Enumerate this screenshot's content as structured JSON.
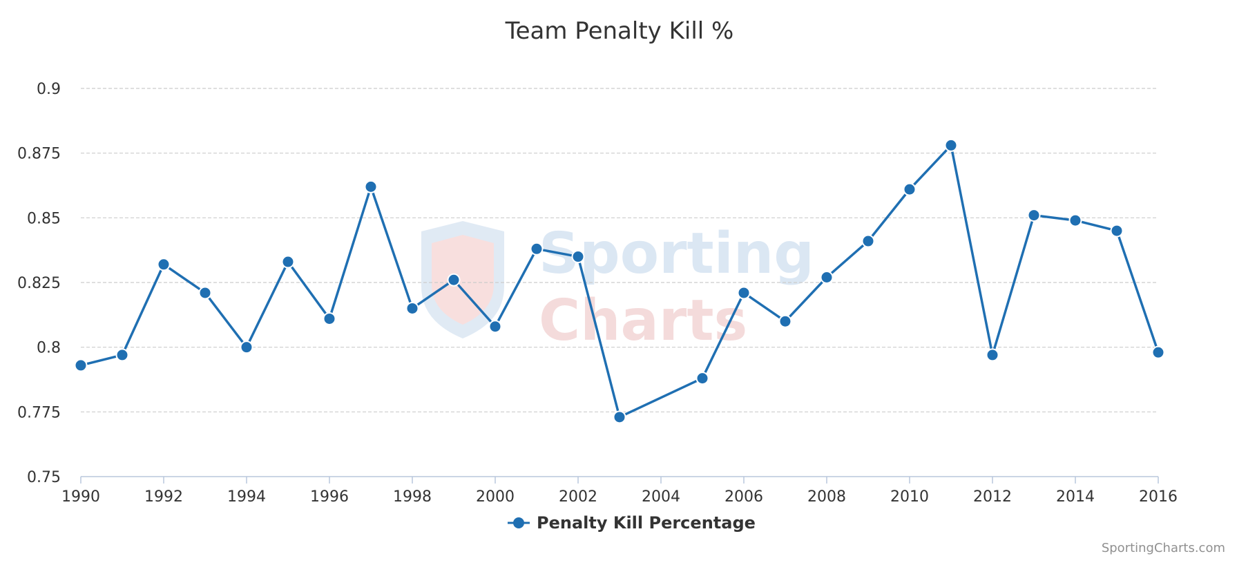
{
  "chart_data": {
    "type": "line",
    "title": "Team Penalty Kill %",
    "xlabel": "",
    "ylabel": "",
    "x": [
      1990,
      1991,
      1992,
      1993,
      1994,
      1995,
      1996,
      1997,
      1998,
      1999,
      2000,
      2001,
      2002,
      2003,
      2005,
      2006,
      2007,
      2008,
      2009,
      2010,
      2011,
      2012,
      2013,
      2014,
      2015,
      2016
    ],
    "series": [
      {
        "name": "Penalty Kill Percentage",
        "color": "#1f6fb2",
        "values": [
          0.793,
          0.797,
          0.832,
          0.821,
          0.8,
          0.833,
          0.811,
          0.862,
          0.815,
          0.826,
          0.808,
          0.838,
          0.835,
          0.773,
          0.788,
          0.821,
          0.81,
          0.827,
          0.841,
          0.861,
          0.878,
          0.797,
          0.851,
          0.849,
          0.845,
          0.798
        ]
      }
    ],
    "xlim": [
      1990,
      2016
    ],
    "ylim": [
      0.75,
      0.9
    ],
    "yticks": [
      0.75,
      0.775,
      0.8,
      0.825,
      0.85,
      0.875,
      0.9
    ],
    "ytick_labels": [
      "0.75",
      "0.775",
      "0.8",
      "0.825",
      "0.85",
      "0.875",
      "0.9"
    ],
    "xticks": [
      1990,
      1992,
      1994,
      1996,
      1998,
      2000,
      2002,
      2004,
      2006,
      2008,
      2010,
      2012,
      2014,
      2016
    ],
    "grid": true,
    "legend_position": "bottom-center"
  },
  "watermark": {
    "line1": "Sporting",
    "line2": "Charts"
  },
  "credits": "SportingCharts.com"
}
